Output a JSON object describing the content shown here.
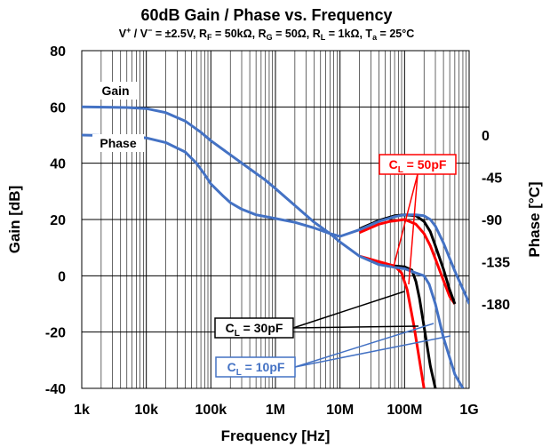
{
  "chart_data": {
    "type": "line",
    "title": "60dB Gain / Phase vs. Frequency",
    "subtitle": {
      "a": "V",
      "a_sup": "+",
      "b": " / V",
      "b_sup": "−",
      "c": " = ±2.5V, R",
      "c_sub": "F",
      "d": " = 50kΩ, R",
      "d_sub": "G",
      "e": " = 50Ω, R",
      "e_sub": "L",
      "f": " = 1kΩ, T",
      "f_sub": "a",
      "g": " = 25°C"
    },
    "xlabel": "Frequency [Hz]",
    "ylabel_left": "Gain [dB]",
    "ylabel_right": "Phase [°C]",
    "x_scale": "log",
    "xlim": [
      1000,
      1000000000
    ],
    "ylim_left": [
      -40,
      80
    ],
    "ylim_right": [
      -270,
      90
    ],
    "x_ticks": [
      {
        "value": 1000,
        "label": "1k"
      },
      {
        "value": 10000,
        "label": "10k"
      },
      {
        "value": 100000,
        "label": "100k"
      },
      {
        "value": 1000000,
        "label": "1M"
      },
      {
        "value": 10000000,
        "label": "10M"
      },
      {
        "value": 100000000,
        "label": "100M"
      },
      {
        "value": 1000000000,
        "label": "1G"
      }
    ],
    "y_ticks_left": [
      {
        "value": 80,
        "label": "80"
      },
      {
        "value": 60,
        "label": "60"
      },
      {
        "value": 40,
        "label": "40"
      },
      {
        "value": 20,
        "label": "20"
      },
      {
        "value": 0,
        "label": "0"
      },
      {
        "value": -20,
        "label": "-20"
      },
      {
        "value": -40,
        "label": "-40"
      }
    ],
    "y_ticks_right": [
      {
        "value": 0,
        "label": "0"
      },
      {
        "value": -45,
        "label": "-45"
      },
      {
        "value": -90,
        "label": "-90"
      },
      {
        "value": -135,
        "label": "-135"
      },
      {
        "value": -180,
        "label": "-180"
      }
    ],
    "grid": true,
    "curve_labels": {
      "gain": "Gain",
      "phase": "Phase"
    },
    "series": [
      {
        "name": "CL = 10pF",
        "label_main": "C",
        "label_sub": "L",
        "label_rest": " = 10pF",
        "color": "#4472c4",
        "gain": [
          [
            1000,
            60
          ],
          [
            5000,
            59.8
          ],
          [
            10000,
            59.4
          ],
          [
            20000,
            58
          ],
          [
            40000,
            55
          ],
          [
            70000,
            51
          ],
          [
            100000,
            48
          ],
          [
            200000,
            43
          ],
          [
            400000,
            38
          ],
          [
            700000,
            34
          ],
          [
            1000000,
            31
          ],
          [
            2000000,
            25
          ],
          [
            4000000,
            19
          ],
          [
            7000000,
            15
          ],
          [
            10000000,
            12
          ],
          [
            20000000,
            7
          ],
          [
            40000000,
            4
          ],
          [
            70000000,
            3
          ],
          [
            100000000,
            2.5
          ],
          [
            150000000,
            1
          ],
          [
            200000000,
            0
          ],
          [
            240000000,
            -3
          ],
          [
            300000000,
            -10
          ],
          [
            400000000,
            -22
          ],
          [
            600000000,
            -35
          ],
          [
            800000000,
            -40
          ]
        ],
        "phase": [
          [
            1000,
            0
          ],
          [
            5000,
            -1
          ],
          [
            10000,
            -3
          ],
          [
            20000,
            -8
          ],
          [
            40000,
            -18
          ],
          [
            60000,
            -30
          ],
          [
            80000,
            -42
          ],
          [
            100000,
            -52
          ],
          [
            150000,
            -64
          ],
          [
            200000,
            -72
          ],
          [
            300000,
            -79
          ],
          [
            500000,
            -85
          ],
          [
            1000000,
            -89
          ],
          [
            2000000,
            -93
          ],
          [
            4000000,
            -99
          ],
          [
            7000000,
            -105
          ],
          [
            10000000,
            -108
          ],
          [
            20000000,
            -101
          ],
          [
            40000000,
            -92
          ],
          [
            70000000,
            -87
          ],
          [
            100000000,
            -85
          ],
          [
            150000000,
            -85
          ],
          [
            200000000,
            -86
          ],
          [
            250000000,
            -90
          ],
          [
            300000000,
            -97
          ],
          [
            400000000,
            -115
          ],
          [
            600000000,
            -145
          ],
          [
            900000000,
            -172
          ],
          [
            1000000000,
            -180
          ]
        ]
      },
      {
        "name": "CL = 30pF",
        "label_main": "C",
        "label_sub": "L",
        "label_rest": " = 30pF",
        "color": "#000000",
        "gain": [
          [
            70000000,
            3.5
          ],
          [
            100000000,
            3.2
          ],
          [
            130000000,
            2
          ],
          [
            150000000,
            -2
          ],
          [
            170000000,
            -8
          ],
          [
            200000000,
            -18
          ],
          [
            250000000,
            -32
          ],
          [
            300000000,
            -40
          ]
        ],
        "phase": [
          [
            20000000,
            -100
          ],
          [
            40000000,
            -91
          ],
          [
            70000000,
            -86
          ],
          [
            100000000,
            -85
          ],
          [
            150000000,
            -86
          ],
          [
            200000000,
            -92
          ],
          [
            250000000,
            -103
          ],
          [
            300000000,
            -118
          ],
          [
            400000000,
            -143
          ],
          [
            500000000,
            -165
          ],
          [
            600000000,
            -180
          ]
        ]
      },
      {
        "name": "CL = 50pF",
        "label_main": "C",
        "label_sub": "L",
        "label_rest": " = 50pF",
        "color": "#ff0000",
        "gain": [
          [
            20000000,
            7
          ],
          [
            40000000,
            5
          ],
          [
            70000000,
            3.5
          ],
          [
            90000000,
            1
          ],
          [
            110000000,
            -5
          ],
          [
            140000000,
            -18
          ],
          [
            170000000,
            -30
          ],
          [
            200000000,
            -40
          ]
        ],
        "phase": [
          [
            20000000,
            -104
          ],
          [
            40000000,
            -95
          ],
          [
            60000000,
            -92
          ],
          [
            100000000,
            -90
          ],
          [
            150000000,
            -95
          ],
          [
            200000000,
            -105
          ],
          [
            250000000,
            -118
          ],
          [
            300000000,
            -132
          ],
          [
            400000000,
            -155
          ],
          [
            500000000,
            -172
          ],
          [
            600000000,
            -180
          ]
        ]
      }
    ]
  }
}
